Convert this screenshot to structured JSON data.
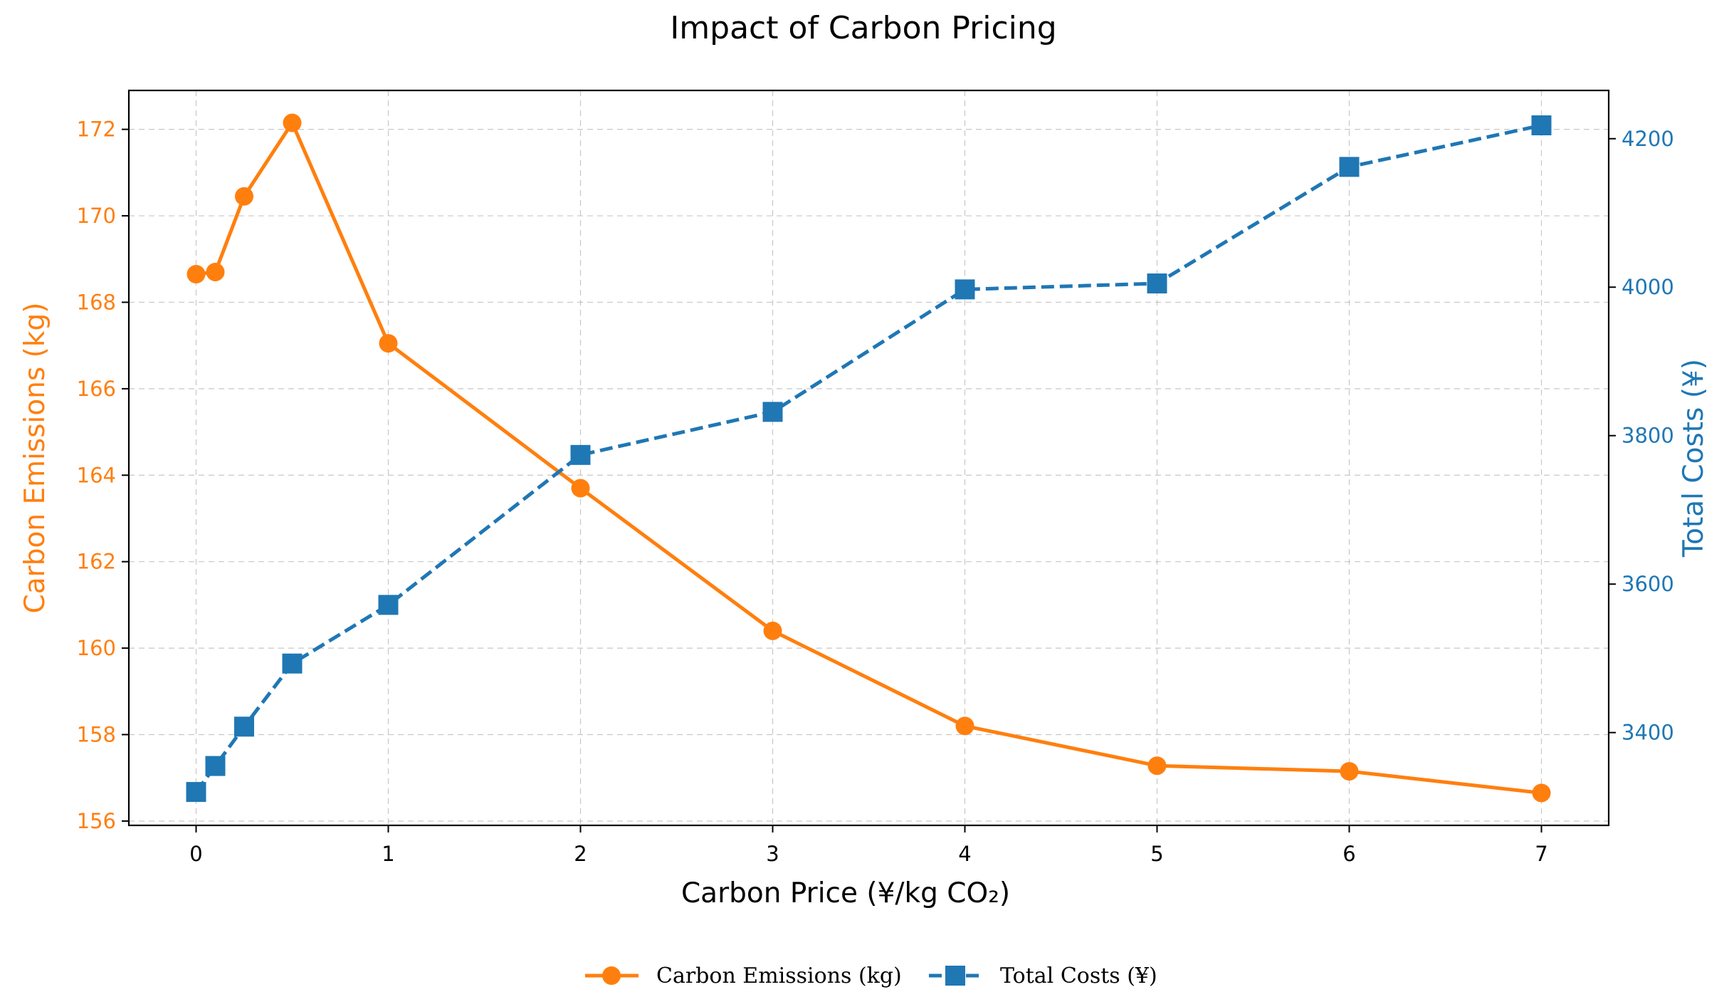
{
  "chart_data": {
    "type": "line",
    "title": "Impact of Carbon Pricing",
    "xlabel": "Carbon Price (¥/kg CO₂)",
    "x": [
      0,
      0.1,
      0.25,
      0.5,
      1,
      2,
      3,
      4,
      5,
      6,
      7
    ],
    "xlim": [
      -0.35,
      7.35
    ],
    "xticks": [
      0,
      1,
      2,
      3,
      4,
      5,
      6,
      7
    ],
    "grid": true,
    "legend_position": "bottom-center",
    "series": [
      {
        "name": "Carbon Emissions (kg)",
        "axis": "left",
        "color": "#ff7f0e",
        "marker": "circle",
        "linestyle": "solid",
        "values": [
          168.65,
          168.7,
          170.45,
          172.15,
          167.05,
          163.7,
          160.4,
          158.2,
          157.28,
          157.15,
          156.65
        ]
      },
      {
        "name": "Total Costs (¥)",
        "axis": "right",
        "color": "#1f77b4",
        "marker": "square",
        "linestyle": "dashed",
        "values": [
          3320,
          3355,
          3408,
          3493,
          3572,
          3774,
          3832,
          3997,
          4005,
          4162,
          4218
        ]
      }
    ],
    "y_left": {
      "label": "Carbon Emissions (kg)",
      "color": "#ff7f0e",
      "lim": [
        155.9,
        172.9
      ],
      "ticks": [
        156,
        158,
        160,
        162,
        164,
        166,
        168,
        170,
        172
      ]
    },
    "y_right": {
      "label": "Total Costs (¥)",
      "color": "#1f77b4",
      "lim": [
        3275,
        4265
      ],
      "ticks": [
        3400,
        3600,
        3800,
        4000,
        4200
      ]
    }
  }
}
